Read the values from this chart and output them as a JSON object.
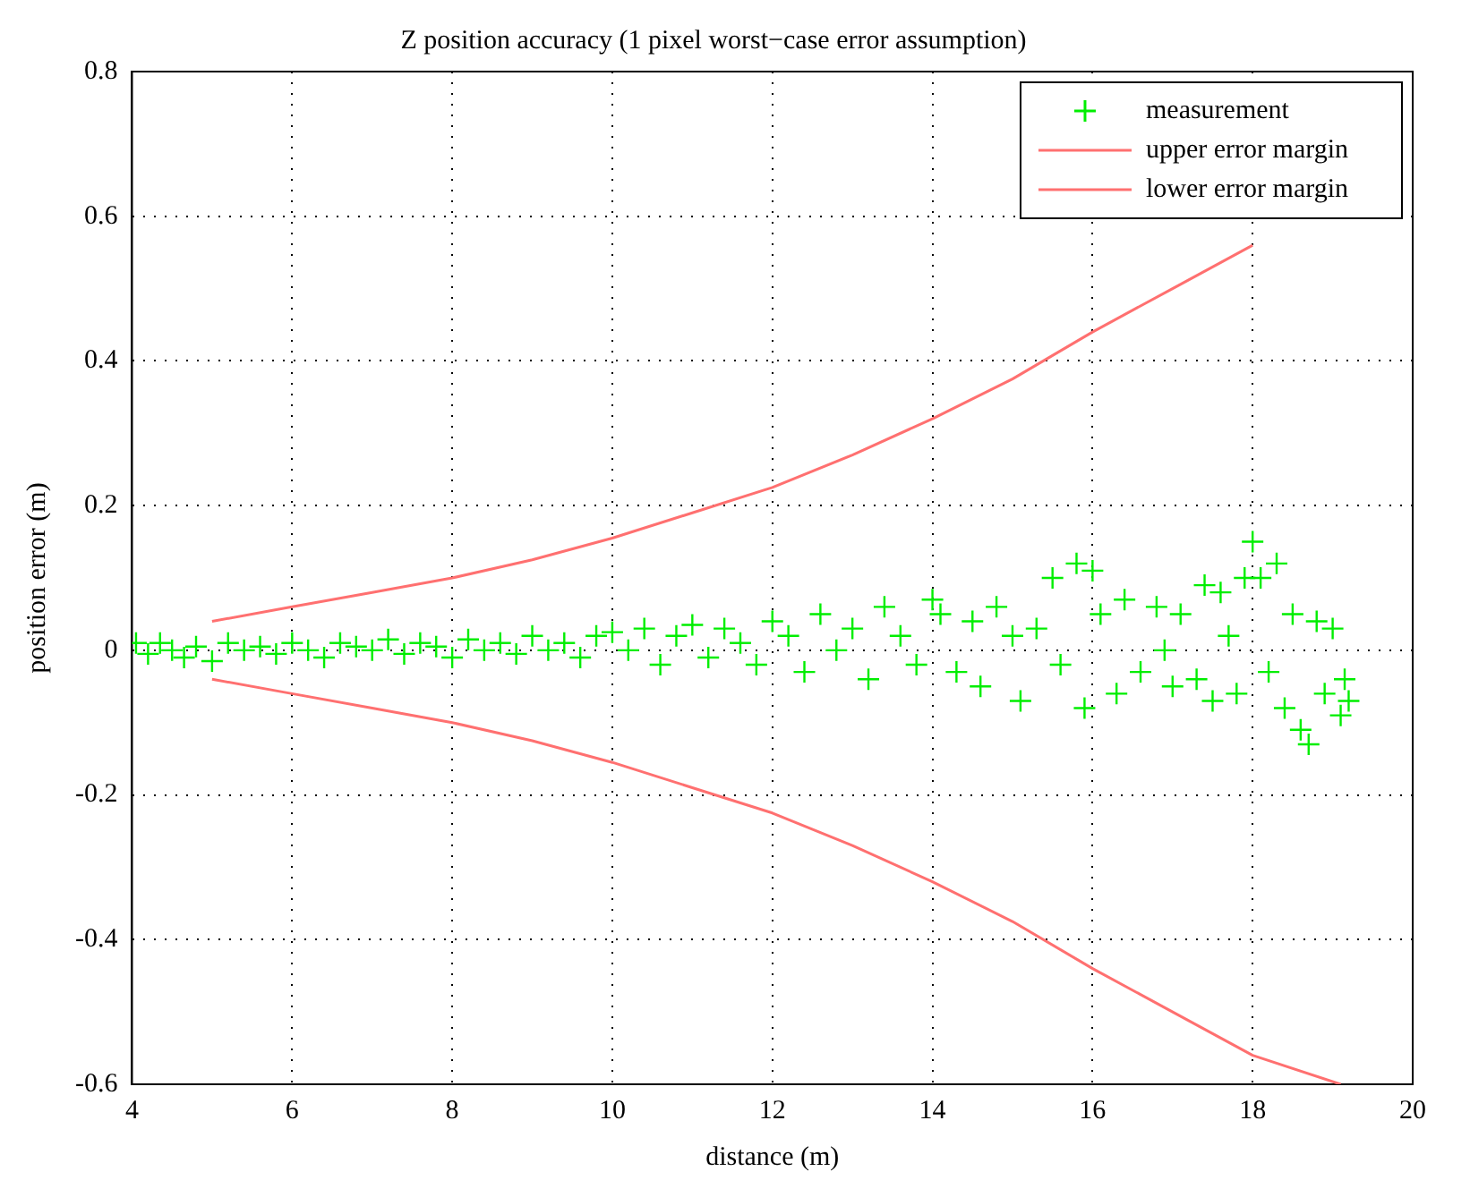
{
  "chart_data": {
    "type": "scatter",
    "title": "Z position accuracy (1 pixel worst−case error assumption)",
    "xlabel": "distance (m)",
    "ylabel": "position error (m)",
    "xlim": [
      4,
      20
    ],
    "ylim": [
      -0.6,
      0.8
    ],
    "xticks": [
      4,
      6,
      8,
      10,
      12,
      14,
      16,
      18,
      20
    ],
    "yticks": [
      -0.6,
      -0.4,
      -0.2,
      0,
      0.2,
      0.4,
      0.6,
      0.8
    ],
    "grid": true,
    "legend": "top right",
    "series": [
      {
        "name": "measurement",
        "type": "scatter",
        "marker": "cross",
        "color": "#00ee00",
        "x": [
          4.05,
          4.2,
          4.35,
          4.5,
          4.65,
          4.8,
          5.0,
          5.2,
          5.4,
          5.6,
          5.8,
          6.0,
          6.2,
          6.4,
          6.6,
          6.8,
          7.0,
          7.2,
          7.4,
          7.6,
          7.8,
          8.0,
          8.2,
          8.4,
          8.6,
          8.8,
          9.0,
          9.2,
          9.4,
          9.6,
          9.8,
          10.0,
          10.2,
          10.4,
          10.6,
          10.8,
          11.0,
          11.2,
          11.4,
          11.6,
          11.8,
          12.0,
          12.2,
          12.4,
          12.6,
          12.8,
          13.0,
          13.2,
          13.4,
          13.6,
          13.8,
          14.0,
          14.1,
          14.3,
          14.5,
          14.6,
          14.8,
          15.0,
          15.1,
          15.3,
          15.5,
          15.6,
          15.8,
          15.9,
          16.0,
          16.1,
          16.3,
          16.4,
          16.6,
          16.8,
          16.9,
          17.0,
          17.1,
          17.3,
          17.4,
          17.5,
          17.6,
          17.7,
          17.8,
          17.9,
          18.0,
          18.1,
          18.2,
          18.3,
          18.4,
          18.5,
          18.6,
          18.7,
          18.8,
          18.9,
          19.0,
          19.1,
          19.15,
          19.2
        ],
        "values": [
          0.01,
          -0.005,
          0.01,
          0.0,
          -0.01,
          0.005,
          -0.015,
          0.01,
          0.0,
          0.005,
          -0.005,
          0.01,
          0.0,
          -0.01,
          0.01,
          0.005,
          0.0,
          0.015,
          -0.005,
          0.01,
          0.005,
          -0.01,
          0.015,
          0.0,
          0.01,
          -0.005,
          0.02,
          0.0,
          0.01,
          -0.01,
          0.02,
          0.025,
          0.0,
          0.03,
          -0.02,
          0.02,
          0.035,
          -0.01,
          0.03,
          0.01,
          -0.02,
          0.04,
          0.02,
          -0.03,
          0.05,
          0.0,
          0.03,
          -0.04,
          0.06,
          0.02,
          -0.02,
          0.07,
          0.05,
          -0.03,
          0.04,
          -0.05,
          0.06,
          0.02,
          -0.07,
          0.03,
          0.1,
          -0.02,
          0.12,
          -0.08,
          0.11,
          0.05,
          -0.06,
          0.07,
          -0.03,
          0.06,
          0.0,
          -0.05,
          0.05,
          -0.04,
          0.09,
          -0.07,
          0.08,
          0.02,
          -0.06,
          0.1,
          0.15,
          0.1,
          -0.03,
          0.12,
          -0.08,
          0.05,
          -0.11,
          -0.13,
          0.04,
          -0.06,
          0.03,
          -0.09,
          -0.04,
          -0.07
        ]
      },
      {
        "name": "upper error margin",
        "type": "line",
        "marker": "none",
        "color": "#ff7070",
        "x": [
          5,
          6,
          7,
          8,
          9,
          10,
          11,
          12,
          13,
          14,
          15,
          16,
          17,
          18
        ],
        "values": [
          0.04,
          0.06,
          0.08,
          0.1,
          0.125,
          0.155,
          0.19,
          0.225,
          0.27,
          0.32,
          0.375,
          0.44,
          0.5,
          0.56
        ]
      },
      {
        "name": "lower error margin",
        "type": "line",
        "marker": "none",
        "color": "#ff7070",
        "x": [
          5,
          6,
          7,
          8,
          9,
          10,
          11,
          12,
          13,
          14,
          15,
          16,
          17,
          18,
          19.1
        ],
        "values": [
          -0.04,
          -0.06,
          -0.08,
          -0.1,
          -0.125,
          -0.155,
          -0.19,
          -0.225,
          -0.27,
          -0.32,
          -0.375,
          -0.44,
          -0.5,
          -0.56,
          -0.6
        ]
      }
    ]
  }
}
